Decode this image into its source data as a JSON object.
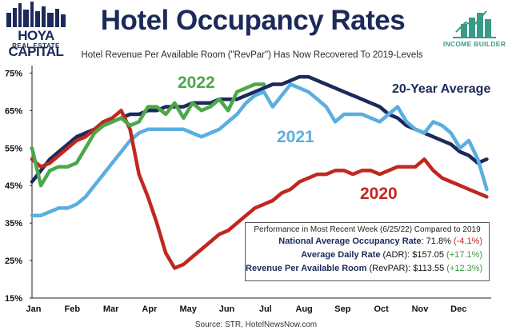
{
  "branding": {
    "left_logo_text": "HOYA CAPITAL",
    "left_logo_sub": "REAL ESTATE",
    "right_logo_text": "INCOME BUILDER"
  },
  "colors": {
    "navy": "#1c2a5a",
    "series_2022": "#4aa84a",
    "series_2021": "#5aaee0",
    "series_2020": "#c0281f",
    "series_avg": "#1c2a5a"
  },
  "chart_data": {
    "type": "line",
    "title": "Hotel Occupancy Rates",
    "subtitle": "Hotel Revenue Per Available Room (\"RevPar\") Has Now Recovered To 2019-Levels",
    "xlabel": "",
    "ylabel": "",
    "categories": [
      "Jan",
      "Feb",
      "Mar",
      "Apr",
      "May",
      "Jun",
      "Jul",
      "Aug",
      "Sep",
      "Oct",
      "Nov",
      "Dec"
    ],
    "yticks": [
      "15%",
      "25%",
      "35%",
      "45%",
      "55%",
      "65%",
      "75%"
    ],
    "ylim": [
      15,
      77
    ],
    "xlim": [
      1,
      52.5
    ],
    "grid": false,
    "series": [
      {
        "name": "20-Year Average",
        "key": "avg",
        "x": [
          1,
          2,
          3,
          4,
          5,
          6,
          7,
          8,
          9,
          10,
          11,
          12,
          13,
          14,
          15,
          16,
          17,
          18,
          19,
          20,
          21,
          22,
          23,
          24,
          25,
          26,
          27,
          28,
          29,
          30,
          31,
          32,
          33,
          34,
          35,
          36,
          37,
          38,
          39,
          40,
          41,
          42,
          43,
          44,
          45,
          46,
          47,
          48,
          49,
          50,
          51,
          52
        ],
        "values": [
          46,
          49,
          52,
          54,
          56,
          58,
          59,
          60,
          61,
          62,
          63,
          64,
          64,
          65,
          65,
          66,
          66,
          66,
          67,
          67,
          67,
          68,
          68,
          68,
          69,
          70,
          71,
          72,
          72,
          73,
          74,
          74,
          73,
          72,
          71,
          70,
          69,
          68,
          67,
          66,
          64,
          63,
          61,
          60,
          59,
          58,
          57,
          56,
          54,
          53,
          51,
          52
        ]
      },
      {
        "name": "2021",
        "key": "y2021",
        "x": [
          1,
          2,
          3,
          4,
          5,
          6,
          7,
          8,
          9,
          10,
          11,
          12,
          13,
          14,
          15,
          16,
          17,
          18,
          19,
          20,
          21,
          22,
          23,
          24,
          25,
          26,
          27,
          28,
          29,
          30,
          31,
          32,
          33,
          34,
          35,
          36,
          37,
          38,
          39,
          40,
          41,
          42,
          43,
          44,
          45,
          46,
          47,
          48,
          49,
          50,
          51,
          52
        ],
        "values": [
          37,
          37,
          38,
          39,
          39,
          40,
          42,
          45,
          48,
          51,
          54,
          57,
          59,
          60,
          60,
          60,
          60,
          60,
          59,
          58,
          59,
          60,
          62,
          64,
          67,
          69,
          70,
          66,
          69,
          72,
          71,
          70,
          68,
          66,
          62,
          64,
          64,
          64,
          63,
          62,
          64,
          66,
          62,
          60,
          59,
          62,
          61,
          59,
          55,
          57,
          52,
          44
        ]
      },
      {
        "name": "2022",
        "key": "y2022",
        "x": [
          1,
          2,
          3,
          4,
          5,
          6,
          7,
          8,
          9,
          10,
          11,
          12,
          13,
          14,
          15,
          16,
          17,
          18,
          19,
          20,
          21,
          22,
          23,
          24,
          25,
          26,
          27
        ],
        "values": [
          55,
          45,
          49,
          50,
          50,
          51,
          55,
          59,
          61,
          62,
          63,
          61,
          62,
          66,
          66,
          64,
          67,
          63,
          67,
          65,
          66,
          68,
          65,
          70,
          71,
          72,
          72
        ]
      },
      {
        "name": "2020",
        "key": "y2020",
        "x": [
          1,
          2,
          3,
          4,
          5,
          6,
          7,
          8,
          9,
          10,
          11,
          12,
          13,
          14,
          15,
          16,
          17,
          18,
          19,
          20,
          21,
          22,
          23,
          24,
          25,
          26,
          27,
          28,
          29,
          30,
          31,
          32,
          33,
          34,
          35,
          36,
          37,
          38,
          39,
          40,
          41,
          42,
          43,
          44,
          45,
          46,
          47,
          48,
          49,
          50,
          51,
          52
        ],
        "values": [
          52,
          50,
          51,
          53,
          55,
          57,
          58,
          60,
          62,
          63,
          65,
          60,
          48,
          42,
          35,
          27,
          23,
          24,
          26,
          28,
          30,
          32,
          33,
          35,
          37,
          39,
          40,
          41,
          43,
          44,
          46,
          47,
          48,
          48,
          49,
          49,
          48,
          49,
          49,
          48,
          49,
          50,
          50,
          50,
          52,
          49,
          47,
          46,
          45,
          44,
          43,
          42
        ]
      }
    ],
    "series_labels": [
      {
        "key": "y2022",
        "text": "2022"
      },
      {
        "key": "avg",
        "text": "20-Year Average"
      },
      {
        "key": "y2021",
        "text": "2021"
      },
      {
        "key": "y2020",
        "text": "2020"
      }
    ],
    "annotation": {
      "heading": "Performance in Most Recent Week (6/25/22) Compared to 2019",
      "rows": [
        {
          "label": "National Average Occupancy Rate",
          "value": ": 71.8%",
          "change": "(-4.1%)",
          "sign": "neg"
        },
        {
          "label": "Average Daily Rate",
          "label_suffix": " (ADR)",
          "value": ": $157.05",
          "change": "(+17.1%)",
          "sign": "pos"
        },
        {
          "label": "Revenue Per Available Room",
          "label_suffix": " (RevPAR)",
          "value": ": $113.55",
          "change": "(+12.3%)",
          "sign": "pos"
        }
      ]
    },
    "source": "Source: STR, HotelNewsNow.com"
  }
}
